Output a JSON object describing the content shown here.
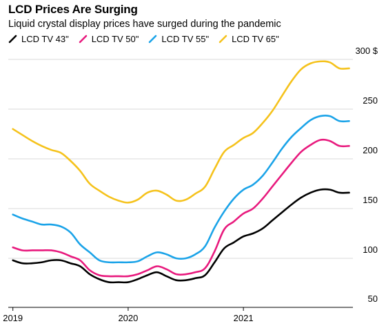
{
  "chart_data": {
    "type": "line",
    "title": "LCD Prices Are Surging",
    "subtitle": "Liquid crystal display prices have surged during the pandemic",
    "y_unit": "$",
    "ylim": [
      50,
      300
    ],
    "y_ticks": [
      50,
      100,
      150,
      200,
      250,
      300
    ],
    "y_tick_labels": [
      "50",
      "100",
      "150",
      "200",
      "250",
      "300 $"
    ],
    "x_ticks": [
      "2019",
      "2020",
      "2021"
    ],
    "x_tick_values": [
      2019.0,
      2020.0,
      2021.0
    ],
    "xlim": [
      2018.96,
      2021.95
    ],
    "grid": true,
    "legend_position": "top-left",
    "x": [
      2019.0,
      2019.083,
      2019.167,
      2019.25,
      2019.333,
      2019.417,
      2019.5,
      2019.583,
      2019.667,
      2019.75,
      2019.833,
      2019.917,
      2020.0,
      2020.083,
      2020.167,
      2020.25,
      2020.333,
      2020.417,
      2020.5,
      2020.583,
      2020.667,
      2020.75,
      2020.833,
      2020.917,
      2021.0,
      2021.083,
      2021.167,
      2021.25,
      2021.333,
      2021.417,
      2021.5,
      2021.583,
      2021.667,
      2021.75,
      2021.833,
      2021.917
    ],
    "series": [
      {
        "name": "LCD TV 43\"",
        "color": "#000000",
        "values": [
          98,
          95,
          95,
          96,
          98,
          98,
          95,
          92,
          84,
          79,
          76,
          76,
          76,
          79,
          83,
          86,
          82,
          78,
          78,
          80,
          83,
          96,
          110,
          116,
          122,
          125,
          130,
          138,
          146,
          154,
          161,
          166,
          169,
          169,
          166,
          166
        ]
      },
      {
        "name": "LCD TV 50\"",
        "color": "#e8197d",
        "values": [
          111,
          108,
          108,
          108,
          108,
          106,
          102,
          98,
          88,
          83,
          82,
          82,
          82,
          84,
          88,
          92,
          89,
          84,
          84,
          86,
          90,
          107,
          129,
          137,
          145,
          150,
          160,
          172,
          184,
          196,
          207,
          214,
          219,
          218,
          213,
          213
        ]
      },
      {
        "name": "LCD TV 55\"",
        "color": "#1aa3e8",
        "values": [
          144,
          140,
          137,
          134,
          134,
          132,
          126,
          114,
          106,
          98,
          96,
          96,
          96,
          97,
          102,
          106,
          104,
          100,
          100,
          104,
          112,
          131,
          147,
          160,
          169,
          174,
          183,
          196,
          210,
          222,
          231,
          239,
          243,
          243,
          238,
          238
        ]
      },
      {
        "name": "LCD TV 65\"",
        "color": "#f5c21b",
        "values": [
          230,
          224,
          218,
          213,
          209,
          206,
          198,
          188,
          175,
          168,
          162,
          158,
          156,
          159,
          166,
          168,
          164,
          158,
          159,
          165,
          172,
          190,
          207,
          214,
          221,
          226,
          236,
          248,
          263,
          278,
          290,
          296,
          298,
          297,
          291,
          291
        ]
      }
    ]
  }
}
